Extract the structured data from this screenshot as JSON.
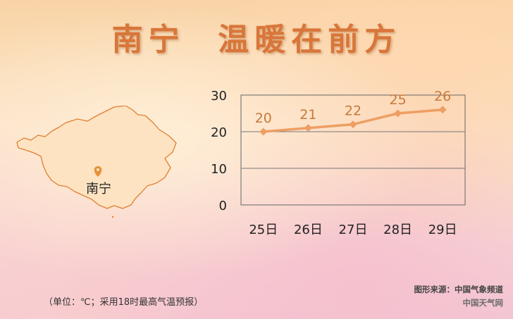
{
  "title": "南宁  温暖在前方",
  "map": {
    "region": "Guangxi",
    "city_label": "南宁",
    "fill_color": "#fde3c2",
    "marker_color": "#e8913a"
  },
  "chart_data": {
    "type": "line",
    "categories": [
      "25日",
      "26日",
      "27日",
      "28日",
      "29日"
    ],
    "values": [
      20,
      21,
      22,
      25,
      26
    ],
    "data_labels": [
      "20",
      "21",
      "22",
      "25",
      "26"
    ],
    "yticks": [
      "0",
      "10",
      "20",
      "30"
    ],
    "ylim": [
      0,
      30
    ],
    "grid": true,
    "line_color": "#ee9e64",
    "label_color": "#c8783a"
  },
  "footnote": "（单位：℃；采用18时最高气温预报）",
  "source": {
    "line1": "图形来源：中国气象频道",
    "line2": "中国天气网"
  }
}
